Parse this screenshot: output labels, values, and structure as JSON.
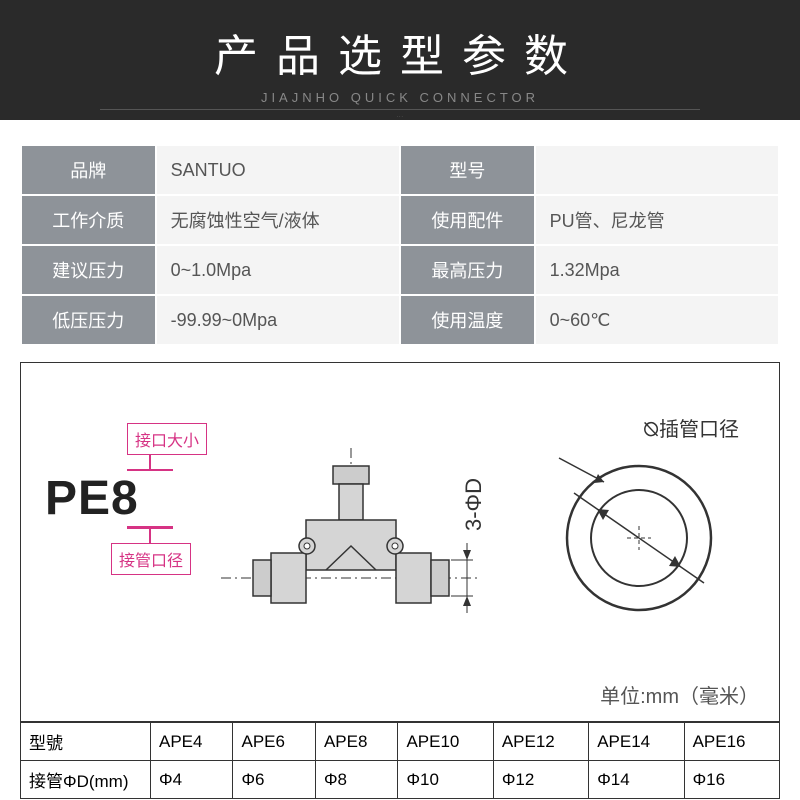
{
  "header": {
    "title": "产品选型参数",
    "subtitle": "JIAJNHO  QUICK CONNECTOR",
    "blurb": "..."
  },
  "spec": {
    "rows": [
      {
        "l1": "品牌",
        "v1": "SANTUO",
        "l2": "型号",
        "v2": ""
      },
      {
        "l1": "工作介质",
        "v1": "无腐蚀性空气/液体",
        "l2": "使用配件",
        "v2": "PU管、尼龙管"
      },
      {
        "l1": "建议压力",
        "v1": "0~1.0Mpa",
        "l2": "最高压力",
        "v2": "1.32Mpa"
      },
      {
        "l1": "低压压力",
        "v1": "-99.99~0Mpa",
        "l2": "使用温度",
        "v2": "0~60℃"
      }
    ]
  },
  "diagram": {
    "callout_top": "接口大小",
    "model": "PE8",
    "callout_bottom": "接管口径",
    "dim_label": "3-ΦD",
    "circle_label": "⦰插管口径",
    "unit": "单位:mm（毫米）",
    "colors": {
      "callout_border": "#d63384",
      "fitting_body": "#cfcfcf",
      "fitting_shade": "#aaaaaa",
      "stroke": "#333333"
    }
  },
  "sizes": {
    "row1_label": "型號",
    "row2_label": "接管ΦD(mm)",
    "cols": [
      {
        "model": "APE4",
        "d": "Φ4"
      },
      {
        "model": "APE6",
        "d": "Φ6"
      },
      {
        "model": "APE8",
        "d": "Φ8"
      },
      {
        "model": "APE10",
        "d": "Φ10"
      },
      {
        "model": "APE12",
        "d": "Φ12"
      },
      {
        "model": "APE14",
        "d": "Φ14"
      },
      {
        "model": "APE16",
        "d": "Φ16"
      }
    ]
  }
}
